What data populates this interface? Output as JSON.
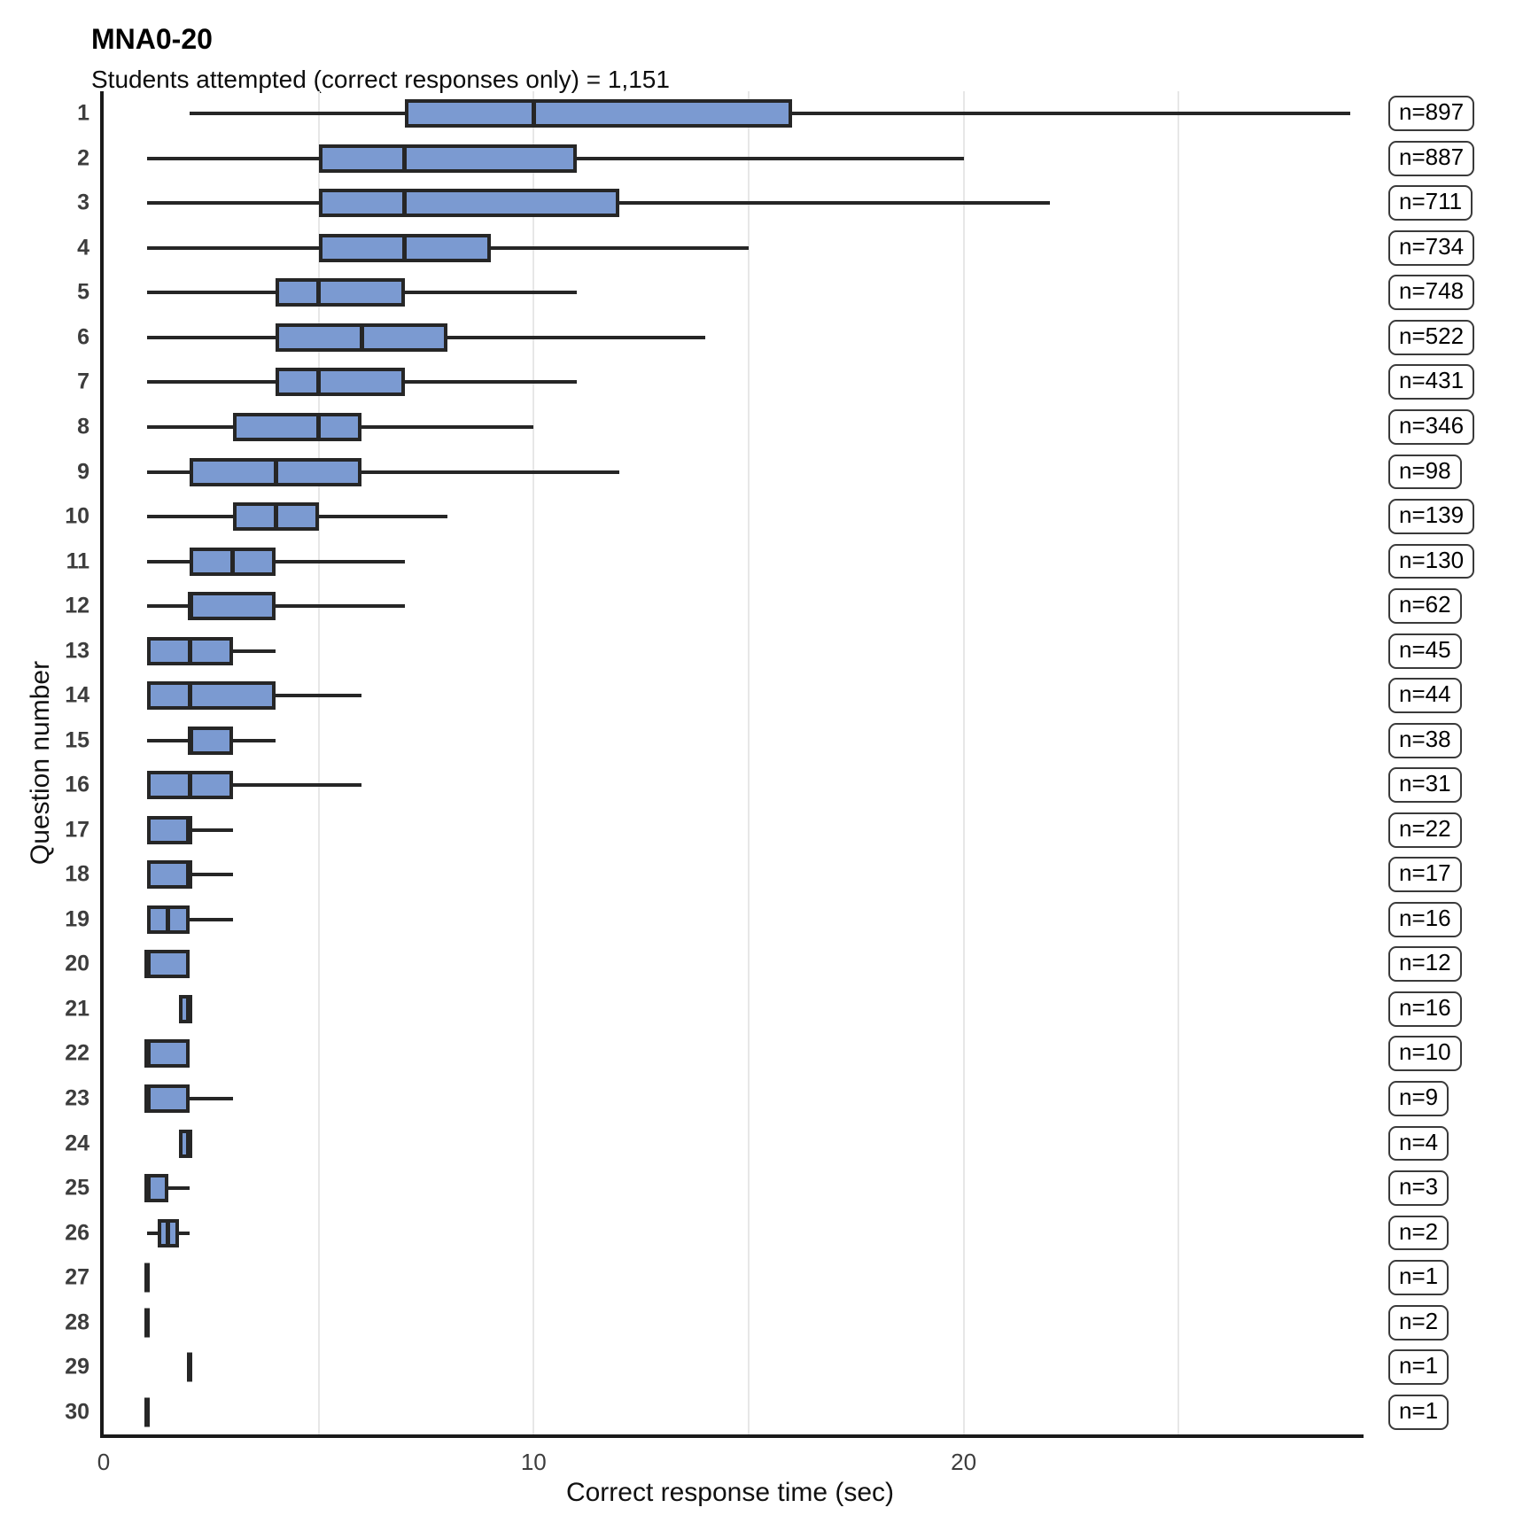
{
  "chart_data": {
    "type": "boxplot",
    "orientation": "horizontal",
    "title": "MNA0-20",
    "subtitle": "Students attempted (correct responses only) = 1,151",
    "xlabel": "Correct response time (sec)",
    "ylabel": "Question number",
    "xlim": [
      0,
      29.3
    ],
    "x_ticks": [
      0,
      10,
      20
    ],
    "gridlines_x": [
      5,
      10,
      15,
      20,
      25
    ],
    "grid": "vertical-gridlines-only",
    "legend": "none",
    "colors": {
      "box_fill": "#7b9ad1",
      "box_border": "#262626",
      "gridline": "#e7e7e7",
      "axis": "#1a1a1a",
      "tick_text": "#3d3d3d"
    },
    "rows": [
      {
        "question": 1,
        "n": 897,
        "n_label": "n=897",
        "whisker_low": 2,
        "q1": 7,
        "median": 10,
        "q3": 16,
        "whisker_high": 29
      },
      {
        "question": 2,
        "n": 887,
        "n_label": "n=887",
        "whisker_low": 1,
        "q1": 5,
        "median": 7,
        "q3": 11,
        "whisker_high": 20
      },
      {
        "question": 3,
        "n": 711,
        "n_label": "n=711",
        "whisker_low": 1,
        "q1": 5,
        "median": 7,
        "q3": 12,
        "whisker_high": 22
      },
      {
        "question": 4,
        "n": 734,
        "n_label": "n=734",
        "whisker_low": 1,
        "q1": 5,
        "median": 7,
        "q3": 9,
        "whisker_high": 15
      },
      {
        "question": 5,
        "n": 748,
        "n_label": "n=748",
        "whisker_low": 1,
        "q1": 4,
        "median": 5,
        "q3": 7,
        "whisker_high": 11
      },
      {
        "question": 6,
        "n": 522,
        "n_label": "n=522",
        "whisker_low": 1,
        "q1": 4,
        "median": 6,
        "q3": 8,
        "whisker_high": 14
      },
      {
        "question": 7,
        "n": 431,
        "n_label": "n=431",
        "whisker_low": 1,
        "q1": 4,
        "median": 5,
        "q3": 7,
        "whisker_high": 11
      },
      {
        "question": 8,
        "n": 346,
        "n_label": "n=346",
        "whisker_low": 1,
        "q1": 3,
        "median": 5,
        "q3": 6,
        "whisker_high": 10
      },
      {
        "question": 9,
        "n": 98,
        "n_label": "n=98",
        "whisker_low": 1,
        "q1": 2,
        "median": 4,
        "q3": 6,
        "whisker_high": 12
      },
      {
        "question": 10,
        "n": 139,
        "n_label": "n=139",
        "whisker_low": 1,
        "q1": 3,
        "median": 4,
        "q3": 5,
        "whisker_high": 8
      },
      {
        "question": 11,
        "n": 130,
        "n_label": "n=130",
        "whisker_low": 1,
        "q1": 2,
        "median": 3,
        "q3": 4,
        "whisker_high": 7
      },
      {
        "question": 12,
        "n": 62,
        "n_label": "n=62",
        "whisker_low": 1,
        "q1": 2,
        "median": 2,
        "q3": 4,
        "whisker_high": 7
      },
      {
        "question": 13,
        "n": 45,
        "n_label": "n=45",
        "whisker_low": 1,
        "q1": 1,
        "median": 2,
        "q3": 3,
        "whisker_high": 4
      },
      {
        "question": 14,
        "n": 44,
        "n_label": "n=44",
        "whisker_low": 1,
        "q1": 1,
        "median": 2,
        "q3": 4,
        "whisker_high": 6
      },
      {
        "question": 15,
        "n": 38,
        "n_label": "n=38",
        "whisker_low": 1,
        "q1": 2,
        "median": 2,
        "q3": 3,
        "whisker_high": 4
      },
      {
        "question": 16,
        "n": 31,
        "n_label": "n=31",
        "whisker_low": 1,
        "q1": 1,
        "median": 2,
        "q3": 3,
        "whisker_high": 6
      },
      {
        "question": 17,
        "n": 22,
        "n_label": "n=22",
        "whisker_low": 1,
        "q1": 1,
        "median": 2,
        "q3": 2,
        "whisker_high": 3
      },
      {
        "question": 18,
        "n": 17,
        "n_label": "n=17",
        "whisker_low": 1,
        "q1": 1,
        "median": 2,
        "q3": 2,
        "whisker_high": 3
      },
      {
        "question": 19,
        "n": 16,
        "n_label": "n=16",
        "whisker_low": 1,
        "q1": 1,
        "median": 1.5,
        "q3": 2,
        "whisker_high": 3
      },
      {
        "question": 20,
        "n": 12,
        "n_label": "n=12",
        "whisker_low": 1,
        "q1": 1,
        "median": 1,
        "q3": 2,
        "whisker_high": 2
      },
      {
        "question": 21,
        "n": 16,
        "n_label": "n=16",
        "whisker_low": 1.75,
        "q1": 1.75,
        "median": 2,
        "q3": 2,
        "whisker_high": 2
      },
      {
        "question": 22,
        "n": 10,
        "n_label": "n=10",
        "whisker_low": 1,
        "q1": 1,
        "median": 1,
        "q3": 2,
        "whisker_high": 2
      },
      {
        "question": 23,
        "n": 9,
        "n_label": "n=9",
        "whisker_low": 1,
        "q1": 1,
        "median": 1,
        "q3": 2,
        "whisker_high": 3
      },
      {
        "question": 24,
        "n": 4,
        "n_label": "n=4",
        "whisker_low": 1.75,
        "q1": 1.75,
        "median": 2,
        "q3": 2,
        "whisker_high": 2
      },
      {
        "question": 25,
        "n": 3,
        "n_label": "n=3",
        "whisker_low": 1,
        "q1": 1,
        "median": 1,
        "q3": 1.5,
        "whisker_high": 2
      },
      {
        "question": 26,
        "n": 2,
        "n_label": "n=2",
        "whisker_low": 1,
        "q1": 1.25,
        "median": 1.5,
        "q3": 1.75,
        "whisker_high": 2
      },
      {
        "question": 27,
        "n": 1,
        "n_label": "n=1",
        "whisker_low": 1,
        "q1": 1,
        "median": 1,
        "q3": 1,
        "whisker_high": 1
      },
      {
        "question": 28,
        "n": 2,
        "n_label": "n=2",
        "whisker_low": 1,
        "q1": 1,
        "median": 1,
        "q3": 1,
        "whisker_high": 1
      },
      {
        "question": 29,
        "n": 1,
        "n_label": "n=1",
        "whisker_low": 2,
        "q1": 2,
        "median": 2,
        "q3": 2,
        "whisker_high": 2
      },
      {
        "question": 30,
        "n": 1,
        "n_label": "n=1",
        "whisker_low": 1,
        "q1": 1,
        "median": 1,
        "q3": 1,
        "whisker_high": 1
      }
    ]
  }
}
